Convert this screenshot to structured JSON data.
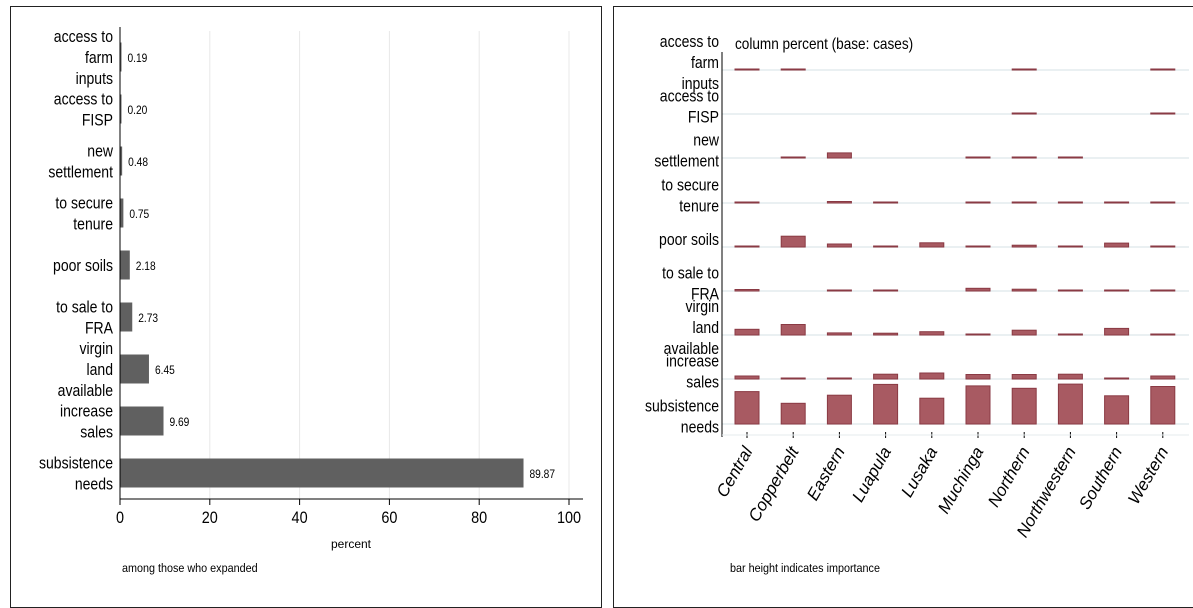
{
  "chart_data": [
    {
      "type": "bar",
      "orientation": "horizontal",
      "categories": [
        "access to farm inputs",
        "access to FISP",
        "new settlement",
        "to secure tenure",
        "poor soils",
        "to sale to FRA",
        "virgin land available",
        "increase sales",
        "subsistence needs"
      ],
      "category_lines": [
        [
          "access to",
          "farm",
          "inputs"
        ],
        [
          "access to",
          "FISP"
        ],
        [
          "new",
          "settlement"
        ],
        [
          "to secure",
          "tenure"
        ],
        [
          "poor soils"
        ],
        [
          "to sale to",
          "FRA"
        ],
        [
          "virgin",
          "land",
          "available"
        ],
        [
          "increase",
          "sales"
        ],
        [
          "subsistence",
          "needs"
        ]
      ],
      "values": [
        0.19,
        0.2,
        0.48,
        0.75,
        2.18,
        2.73,
        6.45,
        9.69,
        89.87
      ],
      "value_labels": [
        "0.19",
        "0.20",
        "0.48",
        "0.75",
        "2.18",
        "2.73",
        "6.45",
        "9.69",
        "89.87"
      ],
      "xlabel": "percent",
      "xlim": [
        0,
        100
      ],
      "xticks": [
        0,
        20,
        40,
        60,
        80,
        100
      ],
      "xtick_labels": [
        "0",
        "20",
        "40",
        "60",
        "80",
        "100"
      ],
      "grid": true,
      "note": "among those who expanded",
      "colors": {
        "bar": "#606060",
        "grid": "#e8e8e8"
      }
    },
    {
      "type": "heatmap",
      "subtitle": "column percent (base: cases)",
      "rows": [
        [
          "access to",
          "farm",
          "inputs"
        ],
        [
          "access to",
          "FISP"
        ],
        [
          "new",
          "settlement"
        ],
        [
          "to secure",
          "tenure"
        ],
        [
          "poor soils"
        ],
        [
          "to sale to",
          "FRA"
        ],
        [
          "virgin",
          "land",
          "available"
        ],
        [
          "increase",
          "sales"
        ],
        [
          "subsistence",
          "needs"
        ]
      ],
      "columns": [
        "Central",
        "Copperbelt",
        "Eastern",
        "Luapula",
        "Lusaka",
        "Muchinga",
        "Northern",
        "Northwestern",
        "Southern",
        "Western"
      ],
      "values": [
        [
          0.3,
          0.3,
          0,
          0,
          0,
          0,
          0.3,
          0,
          0,
          0.3
        ],
        [
          0,
          0,
          0,
          0,
          0,
          0,
          0.2,
          0,
          0,
          0.2
        ],
        [
          0,
          0.2,
          1.7,
          0,
          0,
          0.2,
          0.3,
          0.3,
          0,
          0
        ],
        [
          0.2,
          0,
          0.5,
          0.2,
          0,
          0.2,
          0.2,
          0.2,
          0.2,
          0.2
        ],
        [
          0.2,
          3.6,
          1.0,
          0.2,
          1.4,
          0.1,
          0.6,
          0.2,
          1.3,
          0.1
        ],
        [
          0.5,
          0,
          0.2,
          0.2,
          0,
          0.9,
          0.6,
          0.2,
          0.2,
          0.1
        ],
        [
          1.9,
          3.5,
          0.7,
          0.6,
          1.1,
          0.1,
          1.6,
          0.1,
          2.2,
          0.1
        ],
        [
          1.0,
          0.1,
          0.1,
          1.6,
          2.0,
          1.5,
          1.5,
          1.6,
          0.3,
          1.0
        ],
        [
          10.8,
          6.9,
          9.6,
          13.2,
          8.6,
          12.7,
          11.9,
          13.3,
          9.4,
          12.5
        ]
      ],
      "note": "bar height indicates importance",
      "colors": {
        "bar": "#a85a62",
        "bar_edge": "#8a3a44",
        "line": "#e4ebee"
      }
    }
  ]
}
